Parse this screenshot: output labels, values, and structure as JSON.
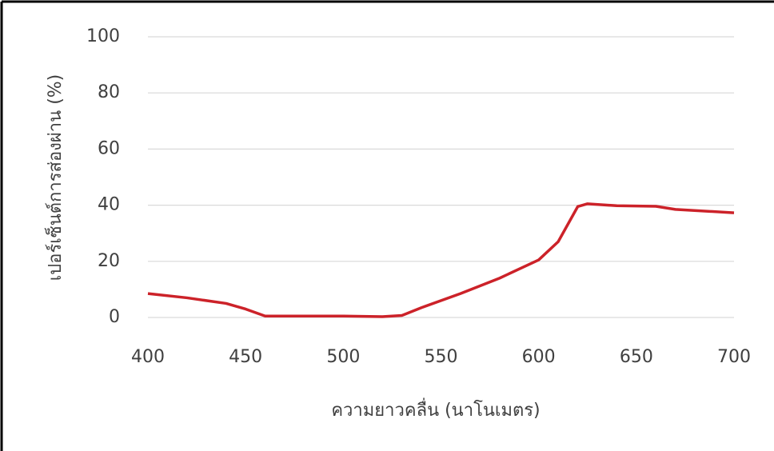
{
  "chart_data": {
    "type": "line",
    "x_label": "ความยาวคลื่น (นาโนเมตร)",
    "y_label": "เปอร์เซ็นต์การส่องผ่าน (%)",
    "x": [
      400,
      420,
      440,
      450,
      460,
      480,
      500,
      520,
      530,
      540,
      560,
      580,
      600,
      610,
      620,
      625,
      640,
      660,
      670,
      700
    ],
    "series": [
      {
        "color": "#cc2229",
        "values": [
          8.5,
          7,
          5,
          3,
          0.5,
          0.5,
          0.5,
          0.3,
          0.7,
          3.5,
          8.5,
          14,
          20.5,
          27,
          39.5,
          40.5,
          39.8,
          39.6,
          38.5,
          37.3
        ]
      }
    ],
    "xlim": [
      400,
      700
    ],
    "xticks": [
      400,
      450,
      500,
      550,
      600,
      650,
      700
    ],
    "ylim": [
      0,
      100
    ],
    "yticks": [
      0,
      20,
      40,
      60,
      80,
      100
    ],
    "grid": true
  }
}
